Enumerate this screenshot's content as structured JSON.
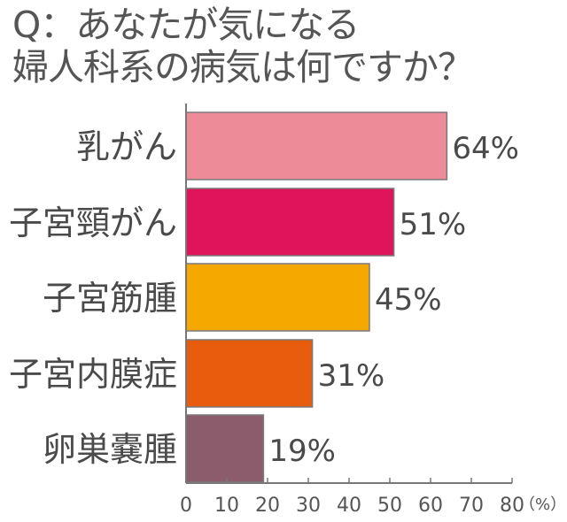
{
  "chart_data": {
    "type": "bar",
    "orientation": "horizontal",
    "title_lines": [
      "Q：あなたが気になる",
      "婦人科系の病気は何ですか？"
    ],
    "categories": [
      "乳がん",
      "子宮頸がん",
      "子宮筋腫",
      "子宮内膜症",
      "卵巣嚢腫"
    ],
    "values": [
      64,
      51,
      45,
      31,
      19
    ],
    "value_labels": [
      "64%",
      "51%",
      "45%",
      "31%",
      "19%"
    ],
    "bar_colors": [
      "#ee8b99",
      "#e0145a",
      "#f5a800",
      "#e85c0e",
      "#8b5c6c"
    ],
    "xlim": [
      0,
      80
    ],
    "x_ticks": [
      0,
      10,
      20,
      30,
      40,
      50,
      60,
      70,
      80
    ],
    "x_tick_labels": [
      "0",
      "10",
      "20",
      "30",
      "40",
      "50",
      "60",
      "70",
      "80"
    ],
    "x_unit": "（%）",
    "grid": false,
    "legend": "none"
  }
}
